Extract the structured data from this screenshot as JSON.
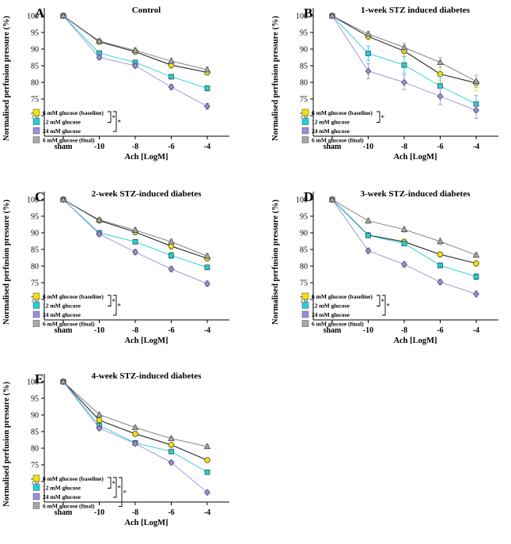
{
  "legend": [
    {
      "name": "6 mM glucose (baseline)",
      "color": "#f2e200",
      "marker": "circle"
    },
    {
      "name": "12 mM glucose",
      "color": "#1fd1d8",
      "marker": "square"
    },
    {
      "name": "24 mM glucose",
      "color": "#9b8ce0",
      "marker": "diamond"
    },
    {
      "name": "6 mM glucose (final)",
      "color": "#a8a8a8",
      "marker": "triangle"
    }
  ],
  "chart_data": [
    {
      "type": "line",
      "panel": "A",
      "title": "Control",
      "xlabel": "Ach [LogM]",
      "ylabel": "Normalised perfusion pressure (%)",
      "categories": [
        "sham",
        "-10",
        "-8",
        "-6",
        "-4"
      ],
      "ylim": [
        65,
        100
      ],
      "yticks": [
        "70",
        "75",
        "80",
        "85",
        "90",
        "95",
        "100"
      ],
      "significance": [
        "*",
        "*"
      ],
      "series": [
        {
          "name": "6 mM glucose (baseline)",
          "values": [
            100,
            92.2,
            89.2,
            85.2,
            83.0
          ],
          "errors": [
            0,
            0.8,
            0.8,
            1.0,
            0.8
          ]
        },
        {
          "name": "12 mM glucose",
          "values": [
            100,
            88.8,
            86.0,
            81.7,
            78.2
          ],
          "errors": [
            0,
            0.6,
            0.6,
            0.7,
            0.8
          ]
        },
        {
          "name": "24 mM glucose",
          "values": [
            100,
            87.5,
            85.0,
            78.6,
            72.8
          ],
          "errors": [
            0,
            0.6,
            0.6,
            0.8,
            0.9
          ]
        },
        {
          "name": "6 mM glucose (final)",
          "values": [
            100,
            92.4,
            89.6,
            86.4,
            83.8
          ],
          "errors": [
            0,
            0.7,
            0.8,
            0.8,
            0.8
          ]
        }
      ]
    },
    {
      "type": "line",
      "panel": "B",
      "title": "1-week STZ induced diabetes",
      "xlabel": "Ach [LogM]",
      "ylabel": "Normalised perfusion pressure (%)",
      "categories": [
        "sham",
        "-10",
        "-8",
        "-6",
        "-4"
      ],
      "ylim": [
        65,
        100
      ],
      "yticks": [
        "70",
        "75",
        "80",
        "85",
        "90",
        "95",
        "100"
      ],
      "significance": [
        "*"
      ],
      "series": [
        {
          "name": "6 mM glucose (baseline)",
          "values": [
            100,
            93.8,
            89.4,
            82.5,
            79.8
          ],
          "errors": [
            0,
            1.0,
            1.5,
            2.0,
            2.3
          ]
        },
        {
          "name": "12 mM glucose",
          "values": [
            100,
            88.7,
            85.2,
            78.9,
            73.5
          ],
          "errors": [
            0,
            2.2,
            2.5,
            2.8,
            2.5
          ]
        },
        {
          "name": "24 mM glucose",
          "values": [
            100,
            83.4,
            80.0,
            75.8,
            71.6
          ],
          "errors": [
            0,
            2.3,
            2.2,
            2.5,
            2.5
          ]
        },
        {
          "name": "6 mM glucose (final)",
          "values": [
            100,
            94.5,
            90.5,
            86.0,
            80.3
          ],
          "errors": [
            0,
            0.8,
            1.2,
            1.5,
            1.8
          ]
        }
      ]
    },
    {
      "type": "line",
      "panel": "C",
      "title": "2-week STZ-induced diabetes",
      "xlabel": "Ach [LogM]",
      "ylabel": "Normalised perfusion pressure (%)",
      "categories": [
        "sham",
        "-10",
        "-8",
        "-6",
        "-4"
      ],
      "ylim": [
        65,
        100
      ],
      "yticks": [
        "70",
        "75",
        "80",
        "85",
        "90",
        "95",
        "100"
      ],
      "significance": [
        "*",
        "*"
      ],
      "series": [
        {
          "name": "6 mM glucose (baseline)",
          "values": [
            100,
            93.7,
            90.2,
            86.0,
            82.3
          ],
          "errors": [
            0,
            0.7,
            0.8,
            1.0,
            0.8
          ]
        },
        {
          "name": "12 mM glucose",
          "values": [
            100,
            90.0,
            87.3,
            83.2,
            79.6
          ],
          "errors": [
            0,
            0.6,
            0.7,
            0.9,
            0.7
          ]
        },
        {
          "name": "24 mM glucose",
          "values": [
            100,
            89.6,
            84.2,
            79.1,
            74.7
          ],
          "errors": [
            0,
            0.6,
            0.8,
            0.8,
            0.8
          ]
        },
        {
          "name": "6 mM glucose (final)",
          "values": [
            100,
            93.9,
            90.8,
            87.3,
            83.0
          ],
          "errors": [
            0,
            0.6,
            0.8,
            0.8,
            0.7
          ]
        }
      ]
    },
    {
      "type": "line",
      "panel": "D",
      "title": "3-week STZ-induced diabetes",
      "xlabel": "Ach [LogM]",
      "ylabel": "Normalised perfusion pressure (%)",
      "categories": [
        "sham",
        "-10",
        "-8",
        "-6",
        "-4"
      ],
      "ylim": [
        65,
        100
      ],
      "yticks": [
        "70",
        "75",
        "80",
        "85",
        "90",
        "95",
        "100"
      ],
      "significance": [
        "*",
        "*"
      ],
      "series": [
        {
          "name": "6 mM glucose (baseline)",
          "values": [
            100,
            89.3,
            87.3,
            83.5,
            80.8
          ],
          "errors": [
            0,
            0.6,
            0.7,
            0.8,
            0.8
          ]
        },
        {
          "name": "12 mM glucose",
          "values": [
            100,
            89.2,
            86.8,
            80.2,
            76.8
          ],
          "errors": [
            0,
            0.6,
            0.7,
            0.8,
            0.9
          ]
        },
        {
          "name": "24 mM glucose",
          "values": [
            100,
            84.6,
            80.5,
            75.2,
            71.6
          ],
          "errors": [
            0,
            0.8,
            0.8,
            0.8,
            0.9
          ]
        },
        {
          "name": "6 mM glucose (final)",
          "values": [
            100,
            93.6,
            91.0,
            87.4,
            83.3
          ],
          "errors": [
            0,
            0.7,
            0.8,
            1.0,
            0.7
          ]
        }
      ]
    },
    {
      "type": "line",
      "panel": "E",
      "title": "4-week STZ-induced diabetes",
      "xlabel": "Ach [LogM]",
      "ylabel": "Normalised perfusion pressure (%)",
      "categories": [
        "sham",
        "-10",
        "-8",
        "-6",
        "-4"
      ],
      "ylim": [
        65,
        100
      ],
      "yticks": [
        "70",
        "75",
        "80",
        "85",
        "90",
        "95",
        "100"
      ],
      "significance": [
        "*",
        "*",
        "*"
      ],
      "series": [
        {
          "name": "6 mM glucose (baseline)",
          "values": [
            100,
            88.4,
            84.3,
            81.0,
            76.4
          ],
          "errors": [
            0,
            0.5,
            0.5,
            0.5,
            0.5
          ]
        },
        {
          "name": "12 mM glucose",
          "values": [
            100,
            86.8,
            81.6,
            79.0,
            72.8
          ],
          "errors": [
            0,
            0.5,
            0.5,
            0.5,
            0.5
          ]
        },
        {
          "name": "24 mM glucose",
          "values": [
            100,
            86.0,
            81.4,
            75.7,
            66.7
          ],
          "errors": [
            0,
            0.5,
            0.5,
            0.5,
            0.5
          ]
        },
        {
          "name": "6 mM glucose (final)",
          "values": [
            100,
            90.1,
            86.2,
            82.9,
            80.5
          ],
          "errors": [
            0,
            0.5,
            0.5,
            0.5,
            0.5
          ]
        }
      ]
    }
  ]
}
